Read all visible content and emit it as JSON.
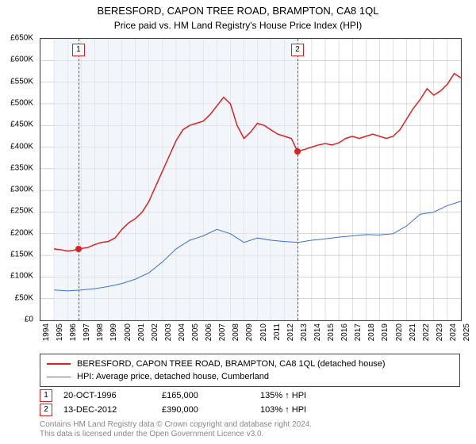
{
  "title": "BERESFORD, CAPON TREE ROAD, BRAMPTON, CA8 1QL",
  "subtitle": "Price paid vs. HM Land Registry's House Price Index (HPI)",
  "chart": {
    "type": "line",
    "background_color": "#ffffff",
    "grid_color": "#999999",
    "shade_color": "#e8eef8",
    "x_domain": [
      1994,
      2025
    ],
    "y_domain": [
      0,
      650000
    ],
    "y_ticks": [
      0,
      50000,
      100000,
      150000,
      200000,
      250000,
      300000,
      350000,
      400000,
      450000,
      500000,
      550000,
      600000,
      650000
    ],
    "y_tick_labels": [
      "£0",
      "£50K",
      "£100K",
      "£150K",
      "£200K",
      "£250K",
      "£300K",
      "£350K",
      "£400K",
      "£450K",
      "£500K",
      "£550K",
      "£600K",
      "£650K"
    ],
    "x_ticks": [
      1994,
      1995,
      1996,
      1997,
      1998,
      1999,
      2000,
      2001,
      2002,
      2003,
      2004,
      2005,
      2006,
      2007,
      2008,
      2009,
      2010,
      2011,
      2012,
      2013,
      2014,
      2015,
      2016,
      2017,
      2018,
      2019,
      2020,
      2021,
      2022,
      2023,
      2024,
      2025
    ],
    "series": [
      {
        "name": "BERESFORD, CAPON TREE ROAD, BRAMPTON, CA8 1QL (detached house)",
        "color": "#e02020",
        "width": 1.5,
        "points": [
          [
            1995.0,
            165000
          ],
          [
            1995.5,
            163000
          ],
          [
            1996.0,
            160000
          ],
          [
            1996.5,
            162000
          ],
          [
            1996.8,
            165000
          ],
          [
            1997.5,
            168000
          ],
          [
            1998.0,
            175000
          ],
          [
            1998.5,
            180000
          ],
          [
            1999.0,
            182000
          ],
          [
            1999.5,
            190000
          ],
          [
            2000.0,
            210000
          ],
          [
            2000.5,
            225000
          ],
          [
            2001.0,
            235000
          ],
          [
            2001.5,
            250000
          ],
          [
            2002.0,
            275000
          ],
          [
            2002.5,
            310000
          ],
          [
            2003.0,
            345000
          ],
          [
            2003.5,
            380000
          ],
          [
            2004.0,
            415000
          ],
          [
            2004.5,
            440000
          ],
          [
            2005.0,
            450000
          ],
          [
            2005.5,
            455000
          ],
          [
            2006.0,
            460000
          ],
          [
            2006.5,
            475000
          ],
          [
            2007.0,
            495000
          ],
          [
            2007.5,
            515000
          ],
          [
            2008.0,
            500000
          ],
          [
            2008.5,
            450000
          ],
          [
            2009.0,
            420000
          ],
          [
            2009.5,
            435000
          ],
          [
            2010.0,
            455000
          ],
          [
            2010.5,
            450000
          ],
          [
            2011.0,
            440000
          ],
          [
            2011.5,
            430000
          ],
          [
            2012.0,
            425000
          ],
          [
            2012.5,
            420000
          ],
          [
            2012.95,
            390000
          ],
          [
            2013.5,
            395000
          ],
          [
            2014.0,
            400000
          ],
          [
            2014.5,
            405000
          ],
          [
            2015.0,
            408000
          ],
          [
            2015.5,
            405000
          ],
          [
            2016.0,
            410000
          ],
          [
            2016.5,
            420000
          ],
          [
            2017.0,
            425000
          ],
          [
            2017.5,
            420000
          ],
          [
            2018.0,
            425000
          ],
          [
            2018.5,
            430000
          ],
          [
            2019.0,
            425000
          ],
          [
            2019.5,
            420000
          ],
          [
            2020.0,
            425000
          ],
          [
            2020.5,
            440000
          ],
          [
            2021.0,
            465000
          ],
          [
            2021.5,
            490000
          ],
          [
            2022.0,
            510000
          ],
          [
            2022.5,
            535000
          ],
          [
            2023.0,
            520000
          ],
          [
            2023.5,
            530000
          ],
          [
            2024.0,
            545000
          ],
          [
            2024.5,
            570000
          ],
          [
            2025.0,
            560000
          ]
        ]
      },
      {
        "name": "HPI: Average price, detached house, Cumberland",
        "color": "#3a6fd8",
        "width": 1,
        "points": [
          [
            1995.0,
            70000
          ],
          [
            1996.0,
            68000
          ],
          [
            1997.0,
            70000
          ],
          [
            1998.0,
            73000
          ],
          [
            1999.0,
            78000
          ],
          [
            2000.0,
            85000
          ],
          [
            2001.0,
            95000
          ],
          [
            2002.0,
            110000
          ],
          [
            2003.0,
            135000
          ],
          [
            2004.0,
            165000
          ],
          [
            2005.0,
            185000
          ],
          [
            2006.0,
            195000
          ],
          [
            2007.0,
            210000
          ],
          [
            2008.0,
            200000
          ],
          [
            2009.0,
            180000
          ],
          [
            2010.0,
            190000
          ],
          [
            2011.0,
            185000
          ],
          [
            2012.0,
            182000
          ],
          [
            2013.0,
            180000
          ],
          [
            2014.0,
            185000
          ],
          [
            2015.0,
            188000
          ],
          [
            2016.0,
            192000
          ],
          [
            2017.0,
            195000
          ],
          [
            2018.0,
            198000
          ],
          [
            2019.0,
            197000
          ],
          [
            2020.0,
            200000
          ],
          [
            2021.0,
            218000
          ],
          [
            2022.0,
            245000
          ],
          [
            2023.0,
            250000
          ],
          [
            2024.0,
            265000
          ],
          [
            2025.0,
            275000
          ]
        ]
      }
    ],
    "sale_markers": [
      {
        "n": "1",
        "year": 1996.8,
        "price": 165000,
        "color": "#e02020"
      },
      {
        "n": "2",
        "year": 2012.95,
        "price": 390000,
        "color": "#e02020"
      }
    ],
    "shaded_periods": [
      {
        "from": 1995.0,
        "to": 1996.8
      },
      {
        "from": 1996.8,
        "to": 2012.95
      }
    ]
  },
  "legend": [
    {
      "color": "#e02020",
      "width": 2,
      "label": "BERESFORD, CAPON TREE ROAD, BRAMPTON, CA8 1QL (detached house)"
    },
    {
      "color": "#3a6fd8",
      "width": 1,
      "label": "HPI: Average price, detached house, Cumberland"
    }
  ],
  "sales": [
    {
      "n": "1",
      "date": "20-OCT-1996",
      "price": "£165,000",
      "vs_hpi": "135% ↑ HPI"
    },
    {
      "n": "2",
      "date": "13-DEC-2012",
      "price": "£390,000",
      "vs_hpi": "103% ↑ HPI"
    }
  ],
  "footer_line1": "Contains HM Land Registry data © Crown copyright and database right 2024.",
  "footer_line2": "This data is licensed under the Open Government Licence v3.0."
}
